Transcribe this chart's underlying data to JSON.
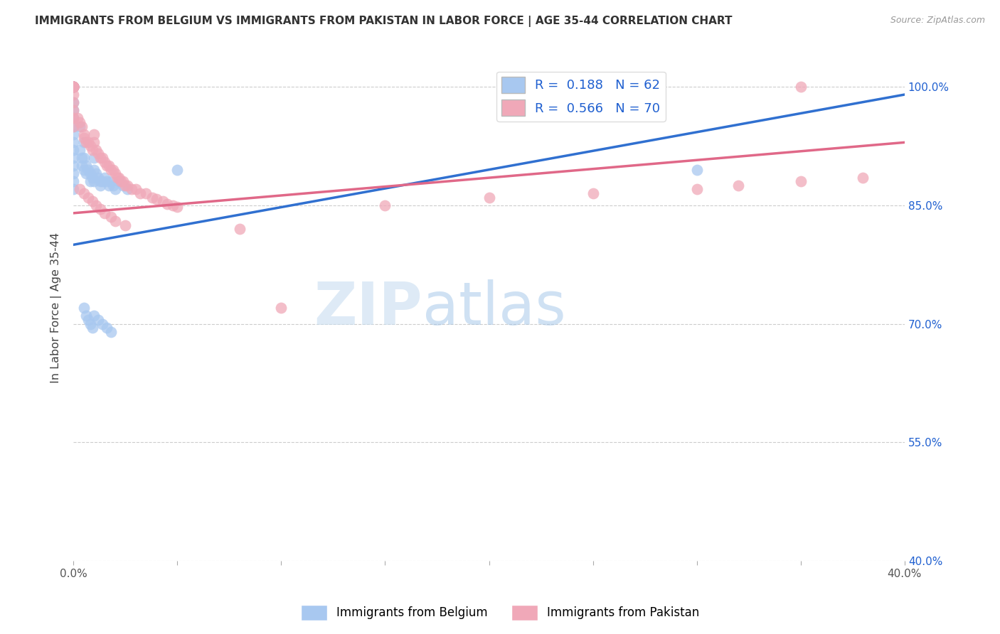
{
  "title": "IMMIGRANTS FROM BELGIUM VS IMMIGRANTS FROM PAKISTAN IN LABOR FORCE | AGE 35-44 CORRELATION CHART",
  "source": "Source: ZipAtlas.com",
  "ylabel": "In Labor Force | Age 35-44",
  "xlim": [
    0.0,
    0.4
  ],
  "ylim": [
    0.4,
    1.04
  ],
  "xtick_positions": [
    0.0,
    0.05,
    0.1,
    0.15,
    0.2,
    0.25,
    0.3,
    0.35,
    0.4
  ],
  "xticklabels": [
    "0.0%",
    "",
    "",
    "",
    "",
    "",
    "",
    "",
    "40.0%"
  ],
  "ytick_positions": [
    0.4,
    0.55,
    0.7,
    0.85,
    1.0
  ],
  "yticklabels": [
    "40.0%",
    "55.0%",
    "70.0%",
    "85.0%",
    "100.0%"
  ],
  "belgium_R": 0.188,
  "belgium_N": 62,
  "pakistan_R": 0.566,
  "pakistan_N": 70,
  "belgium_color": "#a8c8f0",
  "pakistan_color": "#f0a8b8",
  "belgium_line_color": "#3070d0",
  "pakistan_line_color": "#e06888",
  "watermark_zip": "ZIP",
  "watermark_atlas": "atlas",
  "belgium_x": [
    0.0,
    0.0,
    0.0,
    0.0,
    0.0,
    0.0,
    0.0,
    0.0,
    0.0,
    0.0,
    0.0,
    0.0,
    0.0,
    0.0,
    0.0,
    0.0,
    0.0,
    0.0,
    0.0,
    0.0,
    0.003,
    0.003,
    0.004,
    0.004,
    0.005,
    0.005,
    0.005,
    0.006,
    0.006,
    0.007,
    0.008,
    0.008,
    0.009,
    0.01,
    0.01,
    0.01,
    0.011,
    0.012,
    0.013,
    0.013,
    0.014,
    0.015,
    0.016,
    0.017,
    0.018,
    0.019,
    0.02,
    0.022,
    0.024,
    0.026,
    0.005,
    0.006,
    0.007,
    0.008,
    0.009,
    0.01,
    0.012,
    0.014,
    0.016,
    0.018,
    0.05,
    0.3
  ],
  "belgium_y": [
    1.0,
    1.0,
    1.0,
    1.0,
    1.0,
    1.0,
    1.0,
    1.0,
    0.98,
    0.97,
    0.96,
    0.95,
    0.94,
    0.93,
    0.92,
    0.91,
    0.9,
    0.89,
    0.88,
    0.87,
    0.95,
    0.92,
    0.91,
    0.9,
    0.93,
    0.91,
    0.895,
    0.9,
    0.89,
    0.895,
    0.89,
    0.88,
    0.885,
    0.91,
    0.895,
    0.88,
    0.89,
    0.885,
    0.88,
    0.875,
    0.88,
    0.885,
    0.88,
    0.875,
    0.88,
    0.875,
    0.87,
    0.88,
    0.875,
    0.87,
    0.72,
    0.71,
    0.705,
    0.7,
    0.695,
    0.71,
    0.705,
    0.7,
    0.695,
    0.69,
    0.895,
    0.895
  ],
  "pakistan_x": [
    0.0,
    0.0,
    0.0,
    0.0,
    0.0,
    0.0,
    0.0,
    0.0,
    0.0,
    0.0,
    0.0,
    0.0,
    0.0,
    0.002,
    0.003,
    0.004,
    0.005,
    0.005,
    0.006,
    0.007,
    0.008,
    0.009,
    0.01,
    0.01,
    0.011,
    0.012,
    0.013,
    0.014,
    0.015,
    0.016,
    0.017,
    0.018,
    0.019,
    0.02,
    0.021,
    0.022,
    0.023,
    0.024,
    0.025,
    0.026,
    0.028,
    0.03,
    0.032,
    0.035,
    0.038,
    0.04,
    0.043,
    0.045,
    0.048,
    0.05,
    0.003,
    0.005,
    0.007,
    0.009,
    0.011,
    0.013,
    0.015,
    0.018,
    0.02,
    0.025,
    0.08,
    0.15,
    0.2,
    0.25,
    0.3,
    0.32,
    0.35,
    0.38,
    0.1,
    0.35
  ],
  "pakistan_y": [
    1.0,
    1.0,
    1.0,
    1.0,
    1.0,
    1.0,
    1.0,
    1.0,
    0.99,
    0.98,
    0.97,
    0.96,
    0.95,
    0.96,
    0.955,
    0.95,
    0.94,
    0.935,
    0.93,
    0.93,
    0.925,
    0.92,
    0.94,
    0.93,
    0.92,
    0.915,
    0.91,
    0.91,
    0.905,
    0.9,
    0.9,
    0.895,
    0.895,
    0.89,
    0.885,
    0.885,
    0.88,
    0.88,
    0.875,
    0.875,
    0.87,
    0.87,
    0.865,
    0.865,
    0.86,
    0.858,
    0.855,
    0.852,
    0.85,
    0.848,
    0.87,
    0.865,
    0.86,
    0.855,
    0.85,
    0.845,
    0.84,
    0.835,
    0.83,
    0.825,
    0.82,
    0.85,
    0.86,
    0.865,
    0.87,
    0.875,
    0.88,
    0.885,
    0.72,
    1.0
  ]
}
